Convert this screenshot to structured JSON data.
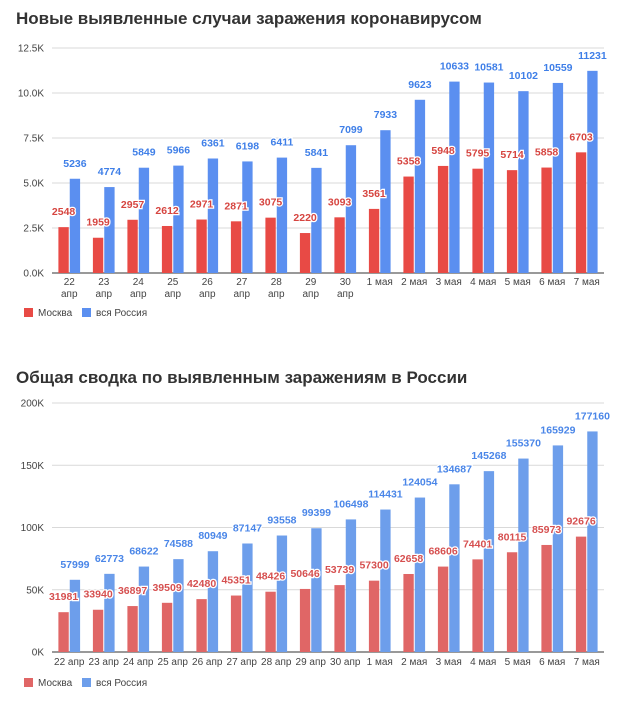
{
  "chart_data": [
    {
      "type": "bar",
      "title": "Новые выявленные случаи заражения коронавирусом",
      "categories": [
        [
          "22",
          "апр"
        ],
        [
          "23",
          "апр"
        ],
        [
          "24",
          "апр"
        ],
        [
          "25",
          "апр"
        ],
        [
          "26",
          "апр"
        ],
        [
          "27",
          "апр"
        ],
        [
          "28",
          "апр"
        ],
        [
          "29",
          "апр"
        ],
        [
          "30",
          "апр"
        ],
        [
          "1 мая"
        ],
        [
          "2 мая"
        ],
        [
          "3 мая"
        ],
        [
          "4 мая"
        ],
        [
          "5 мая"
        ],
        [
          "6 мая"
        ],
        [
          "7 мая"
        ]
      ],
      "series": [
        {
          "name": "Москва",
          "color": "#e84a45",
          "label_color": "#d64540",
          "values": [
            2548,
            1959,
            2957,
            2612,
            2971,
            2871,
            3075,
            2220,
            3093,
            3561,
            5358,
            5948,
            5795,
            5714,
            5858,
            6703
          ]
        },
        {
          "name": "вся Россия",
          "color": "#5b8ff0",
          "label_color": "#3f7fe8",
          "values": [
            5236,
            4774,
            5849,
            5966,
            6361,
            6198,
            6411,
            5841,
            7099,
            7933,
            9623,
            10633,
            10581,
            10102,
            10559,
            11231
          ]
        }
      ],
      "yticks": [
        "0.0K",
        "2.5K",
        "5.0K",
        "7.5K",
        "10.0K",
        "12.5K"
      ],
      "ylim": [
        0,
        12500
      ],
      "grid": true,
      "legend": "bottom-left"
    },
    {
      "type": "bar",
      "title": "Общая сводка по выявленным заражениям в России",
      "categories": [
        [
          "22 апр"
        ],
        [
          "23 апр"
        ],
        [
          "24 апр"
        ],
        [
          "25 апр"
        ],
        [
          "26 апр"
        ],
        [
          "27 апр"
        ],
        [
          "28 апр"
        ],
        [
          "29 апр"
        ],
        [
          "30 апр"
        ],
        [
          "1 мая"
        ],
        [
          "2 мая"
        ],
        [
          "3 мая"
        ],
        [
          "4 мая"
        ],
        [
          "5 мая"
        ],
        [
          "6 мая"
        ],
        [
          "7 мая"
        ]
      ],
      "series": [
        {
          "name": "Москва",
          "color": "#e06666",
          "label_color": "#d65050",
          "values": [
            31981,
            33940,
            36897,
            39509,
            42480,
            45351,
            48426,
            50646,
            53739,
            57300,
            62658,
            68606,
            74401,
            80115,
            85973,
            92676
          ]
        },
        {
          "name": "вся Россия",
          "color": "#6d9eeb",
          "label_color": "#4a86e8",
          "values": [
            57999,
            62773,
            68622,
            74588,
            80949,
            87147,
            93558,
            99399,
            106498,
            114431,
            124054,
            134687,
            145268,
            155370,
            165929,
            177160
          ]
        }
      ],
      "yticks": [
        "0K",
        "50K",
        "100K",
        "150K",
        "200K"
      ],
      "ylim": [
        0,
        200000
      ],
      "grid": true,
      "legend": "bottom-left"
    }
  ]
}
